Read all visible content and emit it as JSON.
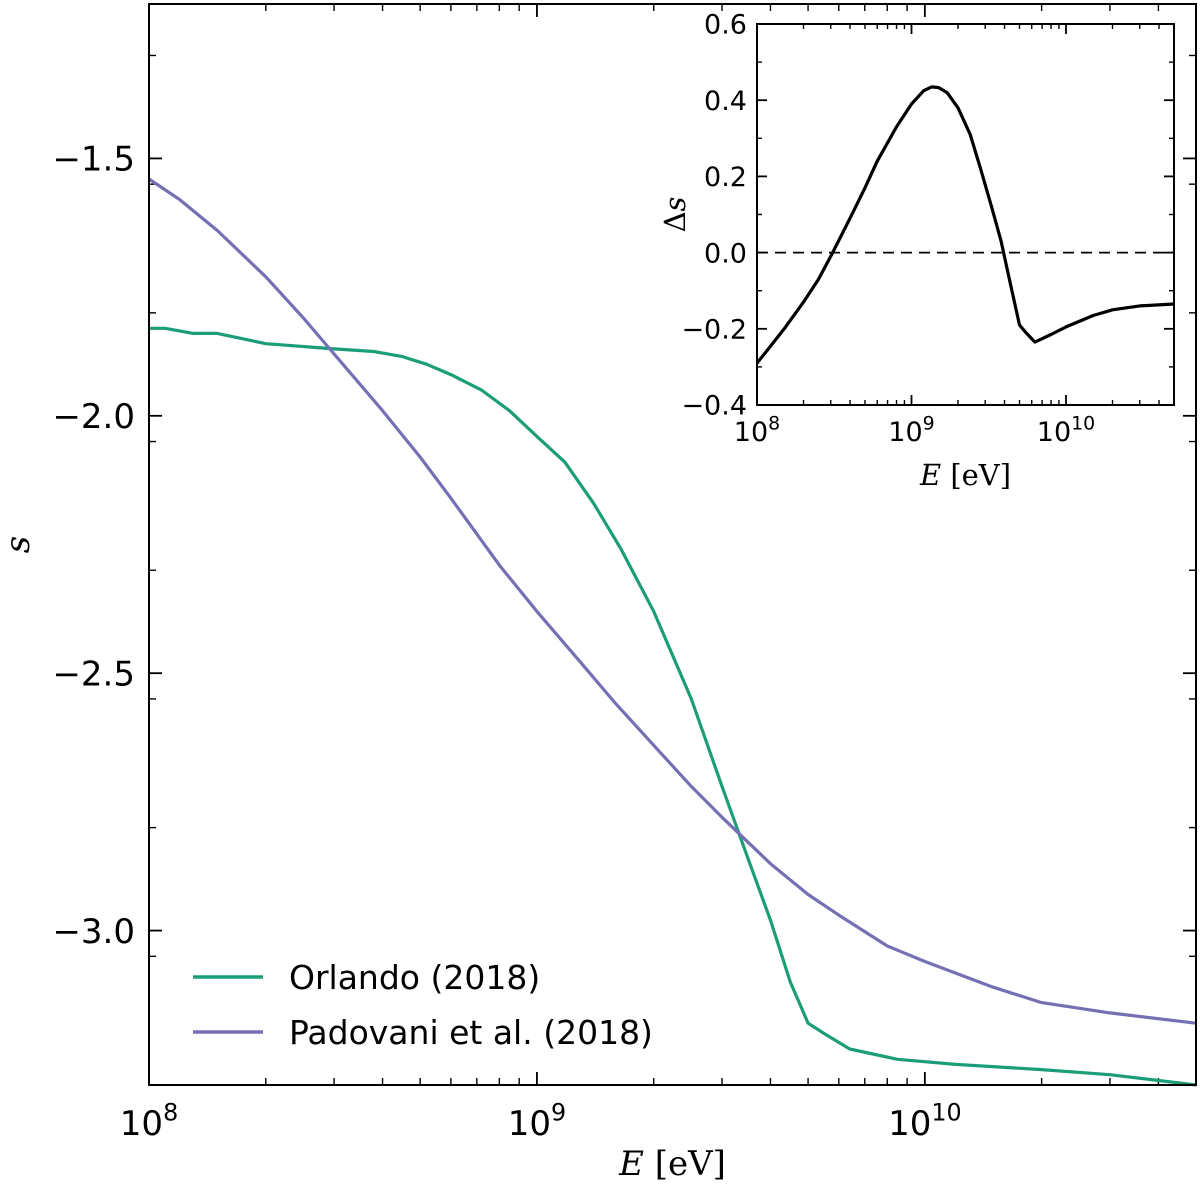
{
  "chart_data": [
    {
      "type": "line",
      "xscale": "log",
      "xlim": [
        100000000,
        50000000000
      ],
      "ylim": [
        -3.3,
        -1.2
      ],
      "xlabel_var": "E",
      "xlabel_unit": "[eV]",
      "ylabel": "s",
      "xticks": [
        {
          "value": 100000000,
          "base": "10",
          "exp": "8"
        },
        {
          "value": 1000000000,
          "base": "10",
          "exp": "9"
        },
        {
          "value": 10000000000,
          "base": "10",
          "exp": "10"
        }
      ],
      "yticks": [
        {
          "value": -1.5,
          "label": "−1.5"
        },
        {
          "value": -2.0,
          "label": "−2.0"
        },
        {
          "value": -2.5,
          "label": "−2.5"
        },
        {
          "value": -3.0,
          "label": "−3.0"
        }
      ],
      "legend_position": "lower-left",
      "series": [
        {
          "name": "Orlando (2018)",
          "color": "#1b9e77",
          "x": [
            100000000,
            110000000,
            130000000,
            150000000,
            200000000,
            300000000,
            380000000,
            450000000,
            520000000,
            600000000,
            720000000,
            850000000,
            1000000000,
            1180000000,
            1400000000,
            1650000000,
            2000000000,
            2500000000,
            3000000000,
            3500000000,
            4000000000,
            4500000000,
            5000000000,
            5500000000,
            6400000000,
            8500000000,
            12000000000,
            20000000000,
            30000000000,
            50000000000
          ],
          "y": [
            -1.83,
            -1.83,
            -1.84,
            -1.84,
            -1.86,
            -1.87,
            -1.875,
            -1.885,
            -1.9,
            -1.92,
            -1.95,
            -1.99,
            -2.04,
            -2.09,
            -2.17,
            -2.26,
            -2.38,
            -2.55,
            -2.72,
            -2.86,
            -2.98,
            -3.1,
            -3.18,
            -3.2,
            -3.23,
            -3.25,
            -3.26,
            -3.27,
            -3.28,
            -3.3
          ]
        },
        {
          "name": "Padovani et al. (2018)",
          "color": "#7570b3",
          "x": [
            100000000,
            120000000,
            150000000,
            200000000,
            250000000,
            300000000,
            400000000,
            500000000,
            600000000,
            800000000,
            1000000000,
            1300000000,
            1600000000,
            2000000000,
            2500000000,
            3000000000,
            4000000000,
            5000000000,
            6000000000,
            8000000000,
            10000000000,
            15000000000,
            20000000000,
            30000000000,
            50000000000
          ],
          "y": [
            -1.54,
            -1.58,
            -1.64,
            -1.73,
            -1.81,
            -1.88,
            -1.99,
            -2.08,
            -2.16,
            -2.29,
            -2.38,
            -2.48,
            -2.56,
            -2.64,
            -2.72,
            -2.78,
            -2.87,
            -2.93,
            -2.97,
            -3.03,
            -3.06,
            -3.11,
            -3.14,
            -3.16,
            -3.18
          ]
        }
      ]
    },
    {
      "type": "line",
      "xscale": "log",
      "xlim": [
        100000000,
        50000000000
      ],
      "ylim": [
        -0.4,
        0.6
      ],
      "xlabel_var": "E",
      "xlabel_unit": "[eV]",
      "ylabel_prefix": "Δ",
      "ylabel_var": "s",
      "xticks": [
        {
          "value": 100000000,
          "base": "10",
          "exp": "8"
        },
        {
          "value": 1000000000,
          "base": "10",
          "exp": "9"
        },
        {
          "value": 10000000000,
          "base": "10",
          "exp": "10"
        }
      ],
      "yticks": [
        {
          "value": -0.4,
          "label": "−0.4"
        },
        {
          "value": -0.2,
          "label": "−0.2"
        },
        {
          "value": 0.0,
          "label": "0.0"
        },
        {
          "value": 0.2,
          "label": "0.2"
        },
        {
          "value": 0.4,
          "label": "0.4"
        },
        {
          "value": 0.6,
          "label": "0.6"
        }
      ],
      "reference_line": {
        "y": 0.0,
        "style": "dashed"
      },
      "series": [
        {
          "name": "Δs",
          "color": "#000000",
          "x": [
            100000000,
            120000000,
            150000000,
            200000000,
            250000000,
            300000000,
            400000000,
            500000000,
            600000000,
            800000000,
            1000000000,
            1200000000,
            1350000000,
            1500000000,
            1700000000,
            2000000000,
            2400000000,
            2800000000,
            3300000000,
            3800000000,
            4300000000,
            5000000000,
            5500000000,
            6300000000,
            8000000000,
            10000000000,
            15000000000,
            20000000000,
            30000000000,
            50000000000
          ],
          "y": [
            -0.29,
            -0.25,
            -0.2,
            -0.13,
            -0.07,
            -0.01,
            0.09,
            0.17,
            0.24,
            0.33,
            0.39,
            0.425,
            0.435,
            0.433,
            0.42,
            0.38,
            0.31,
            0.22,
            0.12,
            0.03,
            -0.07,
            -0.19,
            -0.21,
            -0.235,
            -0.215,
            -0.195,
            -0.165,
            -0.15,
            -0.14,
            -0.135
          ]
        }
      ]
    }
  ],
  "style": {
    "axis_color": "#000000"
  }
}
